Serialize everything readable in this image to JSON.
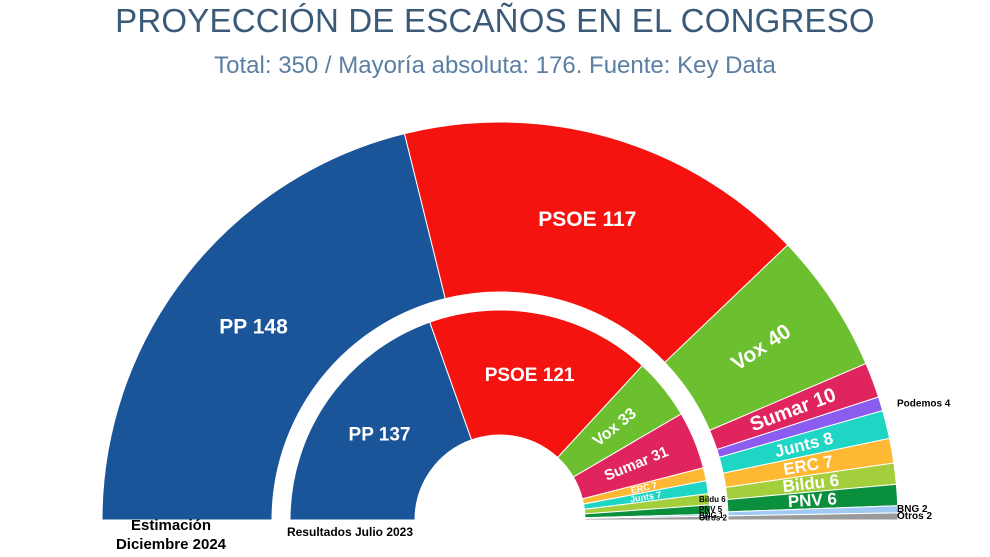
{
  "header": {
    "title": "PROYECCIÓN DE ESCAÑOS EN EL CONGRESO",
    "subtitle": "Total: 350 / Mayoría absoluta: 176. Fuente: Key Data"
  },
  "chart_data": [
    {
      "type": "pie",
      "label": "Estimación Diciembre 2024",
      "label_lines": [
        "Estimación",
        "Diciembre 2024"
      ],
      "slices": [
        {
          "party": "PP",
          "seats": 148,
          "label": "PP 148",
          "color": "#1a5499"
        },
        {
          "party": "PSOE",
          "seats": 117,
          "label": "PSOE 117",
          "color": "#f5130f"
        },
        {
          "party": "Vox",
          "seats": 40,
          "label": "Vox 40",
          "color": "#6cbf2e"
        },
        {
          "party": "Sumar",
          "seats": 10,
          "label": "Sumar 10",
          "color": "#e0245e"
        },
        {
          "party": "Podemos",
          "seats": 4,
          "label": "Podemos 4",
          "color": "#8a5cf0"
        },
        {
          "party": "Junts",
          "seats": 8,
          "label": "Junts 8",
          "color": "#1fd6c4"
        },
        {
          "party": "ERC",
          "seats": 7,
          "label": "ERC 7",
          "color": "#ffb833"
        },
        {
          "party": "Bildu",
          "seats": 6,
          "label": "Bildu 6",
          "color": "#a3cf3c"
        },
        {
          "party": "PNV",
          "seats": 6,
          "label": "PNV 6",
          "color": "#0a8f3d"
        },
        {
          "party": "BNG",
          "seats": 2,
          "label": "BNG 2",
          "color": "#9fc9f2"
        },
        {
          "party": "Otros",
          "seats": 2,
          "label": "Otros 2",
          "color": "#9a9a9a"
        }
      ]
    },
    {
      "type": "pie",
      "label": "Resultados Julio 2023",
      "label_lines": [
        "Resultados Julio 2023"
      ],
      "slices": [
        {
          "party": "PP",
          "seats": 137,
          "label": "PP 137",
          "color": "#1a5499"
        },
        {
          "party": "PSOE",
          "seats": 121,
          "label": "PSOE 121",
          "color": "#f5130f"
        },
        {
          "party": "Vox",
          "seats": 33,
          "label": "Vox 33",
          "color": "#6cbf2e"
        },
        {
          "party": "Sumar",
          "seats": 31,
          "label": "Sumar 31",
          "color": "#e0245e"
        },
        {
          "party": "ERC",
          "seats": 7,
          "label": "ERC 7",
          "color": "#ffb833"
        },
        {
          "party": "Junts",
          "seats": 7,
          "label": "Junts 7",
          "color": "#1fd6c4"
        },
        {
          "party": "Bildu",
          "seats": 6,
          "label": "Bildu 6",
          "color": "#a3cf3c"
        },
        {
          "party": "PNV",
          "seats": 5,
          "label": "PNV 5",
          "color": "#0a8f3d"
        },
        {
          "party": "BNG",
          "seats": 1,
          "label": "BNG 1",
          "color": "#9fc9f2"
        },
        {
          "party": "Otros",
          "seats": 2,
          "label": "Otros 2",
          "color": "#9a9a9a"
        }
      ]
    }
  ]
}
